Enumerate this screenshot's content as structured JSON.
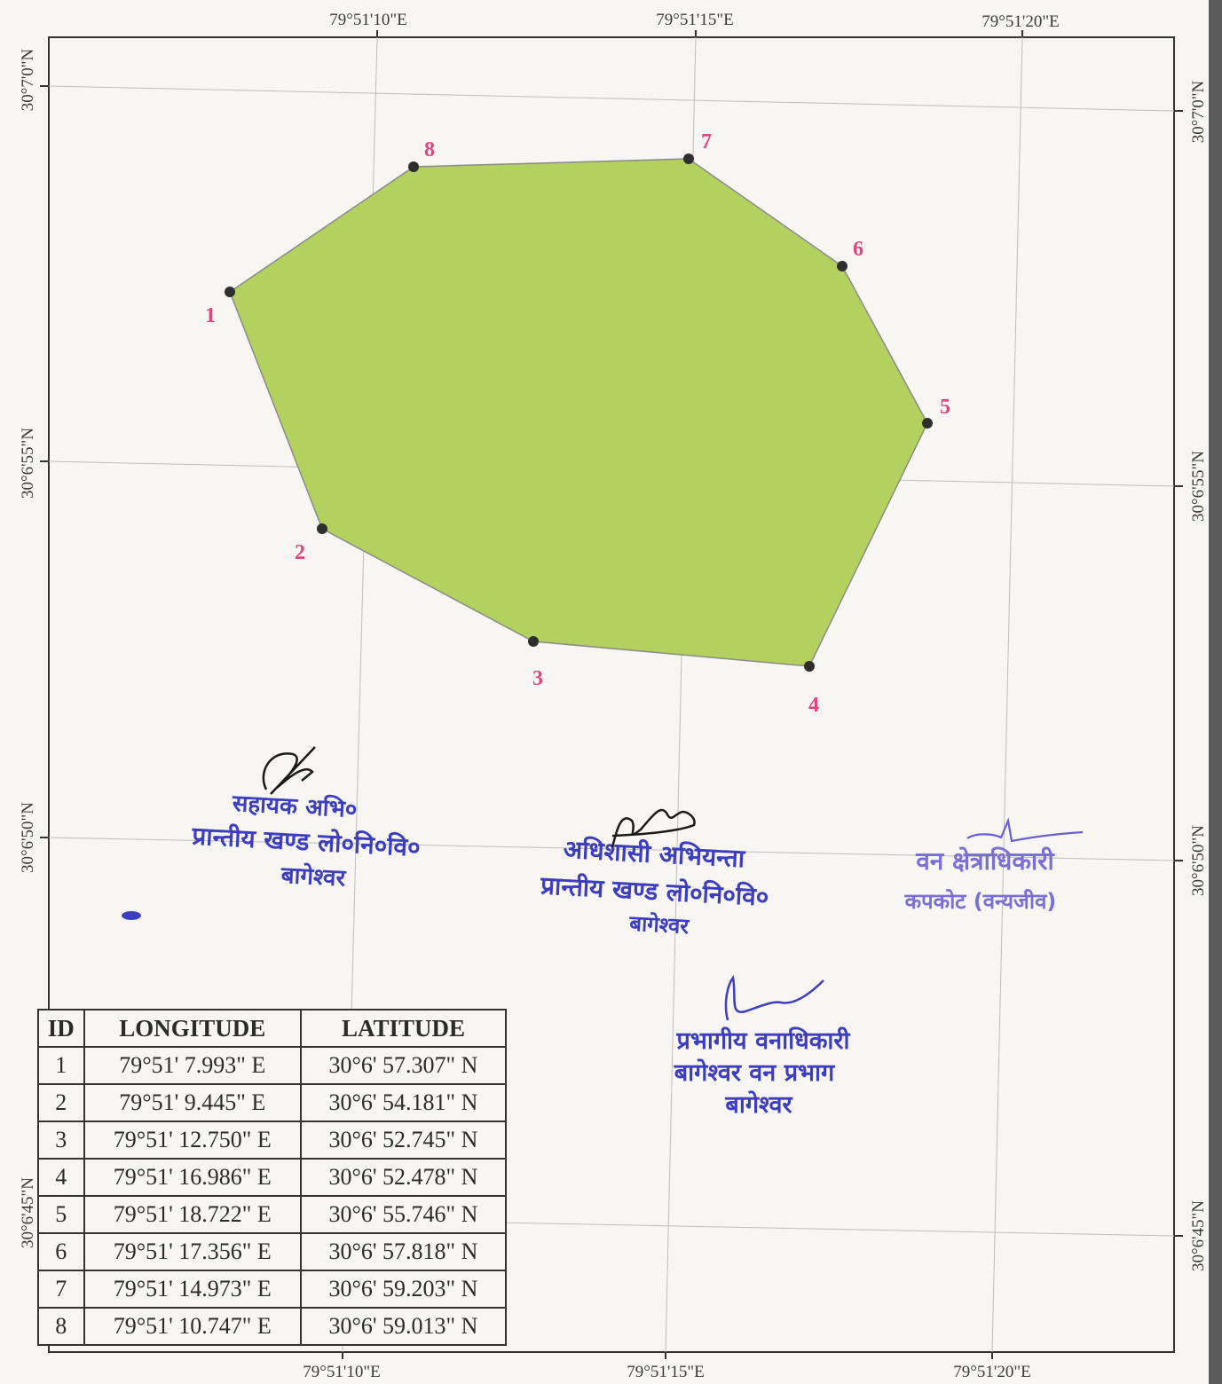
{
  "map": {
    "lon_ticks": [
      "79°51'10\"E",
      "79°51'15\"E",
      "79°51'20\"E"
    ],
    "lat_ticks": [
      "30°7'0\"N",
      "30°6'55\"N",
      "30°6'50\"N",
      "30°6'45\"N"
    ],
    "polygon_fill": "#b3d15e",
    "vertex_label_color": "#e0457b",
    "vertices": [
      {
        "id": "1",
        "lon": "79°51' 7.993\" E",
        "lat": "30°6' 57.307\" N"
      },
      {
        "id": "2",
        "lon": "79°51' 9.445\" E",
        "lat": "30°6' 54.181\" N"
      },
      {
        "id": "3",
        "lon": "79°51' 12.750\" E",
        "lat": "30°6' 52.745\" N"
      },
      {
        "id": "4",
        "lon": "79°51' 16.986\" E",
        "lat": "30°6' 52.478\" N"
      },
      {
        "id": "5",
        "lon": "79°51' 18.722\" E",
        "lat": "30°6' 55.746\" N"
      },
      {
        "id": "6",
        "lon": "79°51' 17.356\" E",
        "lat": "30°6' 57.818\" N"
      },
      {
        "id": "7",
        "lon": "79°51' 14.973\" E",
        "lat": "30°6' 59.203\" N"
      },
      {
        "id": "8",
        "lon": "79°51' 10.747\" E",
        "lat": "30°6' 59.013\" N"
      }
    ]
  },
  "table": {
    "headers": {
      "id": "ID",
      "longitude": "LONGITUDE",
      "latitude": "LATITUDE"
    }
  },
  "stamps": {
    "stamp_1": [
      "सहायक अभि०",
      "प्रान्तीय खण्ड लो०नि०वि०",
      "बागेश्वर"
    ],
    "stamp_2": [
      "अधिशासी अभियन्ता",
      "प्रान्तीय खण्ड लो०नि०वि०",
      "बागेश्वर"
    ],
    "stamp_3": [
      "वन क्षेत्राधिकारी",
      "कपकोट (वन्यजीव)"
    ],
    "stamp_4": [
      "प्रभागीय वनाधिकारी",
      "बागेश्वर वन प्रभाग",
      "बागेश्वर"
    ],
    "stamp_color": "#3d3dbf",
    "stamp_color_light": "#7a6fd6"
  }
}
